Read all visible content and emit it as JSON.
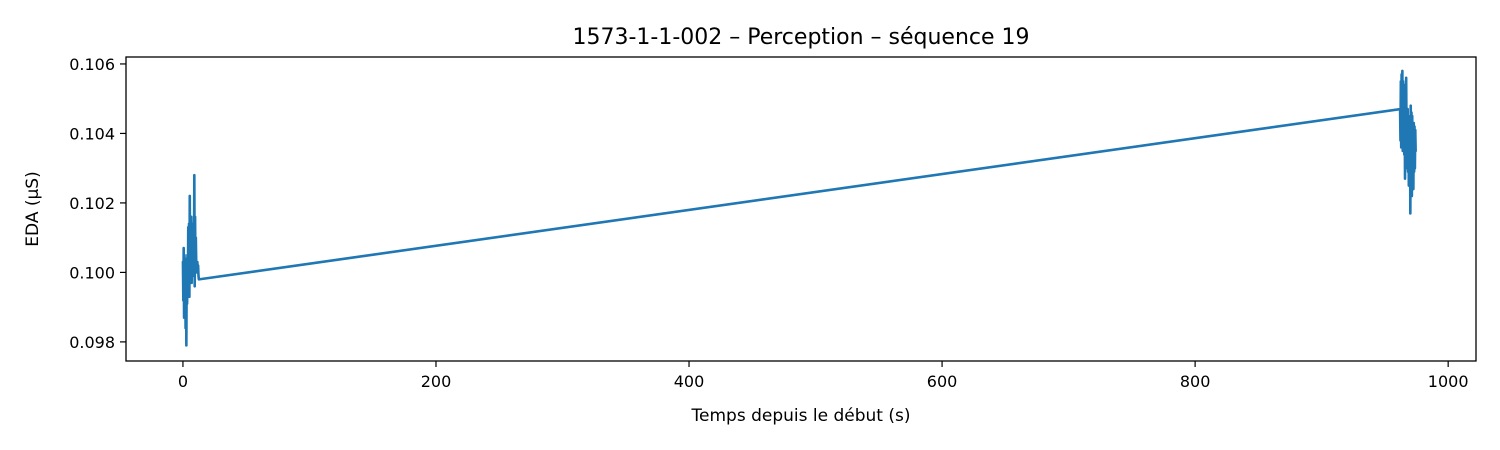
{
  "chart_data": {
    "type": "line",
    "title": "1573-1-1-002 – Perception – séquence 19",
    "xlabel": "Temps depuis le début (s)",
    "ylabel": "EDA (µS)",
    "xlim": [
      -45,
      1022
    ],
    "ylim": [
      0.09745,
      0.1062
    ],
    "xticks": [
      0,
      200,
      400,
      600,
      800,
      1000
    ],
    "yticks": [
      0.098,
      0.1,
      0.102,
      0.104,
      0.106
    ],
    "xtick_labels": [
      "0",
      "200",
      "400",
      "600",
      "800",
      "1000"
    ],
    "ytick_labels": [
      "0.098",
      "0.100",
      "0.102",
      "0.104",
      "0.106"
    ],
    "grid": false,
    "series": [
      {
        "color": "#1f77b4",
        "x": [
          0,
          0.3,
          0.6,
          0.9,
          1.2,
          1.5,
          1.8,
          2.1,
          2.4,
          2.7,
          3.0,
          3.3,
          3.6,
          3.9,
          4.2,
          4.5,
          4.8,
          5.1,
          5.4,
          5.7,
          6.0,
          6.3,
          6.6,
          6.9,
          7.2,
          7.5,
          7.8,
          8.1,
          8.4,
          8.7,
          9.0,
          9.3,
          9.6,
          9.9,
          10.2,
          10.5,
          10.8,
          11.1,
          11.4,
          11.7,
          12.0,
          12.3,
          12.6,
          962.0,
          962.3,
          962.6,
          962.9,
          963.2,
          963.5,
          963.8,
          964.1,
          964.4,
          964.7,
          965.0,
          965.3,
          965.6,
          965.9,
          966.2,
          966.5,
          966.8,
          967.1,
          967.4,
          967.7,
          968.0,
          968.3,
          968.6,
          968.9,
          969.2,
          969.5,
          969.8,
          970.1,
          970.4,
          970.7,
          971.0,
          971.3,
          971.6,
          971.9,
          972.2,
          972.5,
          972.8,
          973.1,
          973.4,
          973.7,
          974.0,
          974.3
        ],
        "y": [
          0.1003,
          0.0992,
          0.1007,
          0.0987,
          0.1005,
          0.0989,
          0.1004,
          0.0984,
          0.1002,
          0.0979,
          0.1003,
          0.0991,
          0.1005,
          0.0993,
          0.1013,
          0.0997,
          0.1014,
          0.0993,
          0.1022,
          0.0999,
          0.1012,
          0.1001,
          0.1016,
          0.0997,
          0.1013,
          0.1,
          0.1014,
          0.0999,
          0.1011,
          0.1002,
          0.1028,
          0.0996,
          0.1016,
          0.1,
          0.101,
          0.1003,
          0.1,
          0.1002,
          0.1003,
          0.1,
          0.1002,
          0.0999,
          0.0998,
          0.1047,
          0.1038,
          0.1055,
          0.1036,
          0.1057,
          0.104,
          0.1058,
          0.1035,
          0.1055,
          0.1037,
          0.1054,
          0.1034,
          0.1048,
          0.1027,
          0.1049,
          0.103,
          0.1056,
          0.1039,
          0.1045,
          0.1032,
          0.1047,
          0.1029,
          0.1045,
          0.1025,
          0.1043,
          0.1028,
          0.1042,
          0.1017,
          0.1048,
          0.1024,
          0.1046,
          0.1022,
          0.1045,
          0.1028,
          0.1041,
          0.1024,
          0.1043,
          0.1029,
          0.1042,
          0.103,
          0.1041,
          0.1035
        ]
      }
    ]
  }
}
